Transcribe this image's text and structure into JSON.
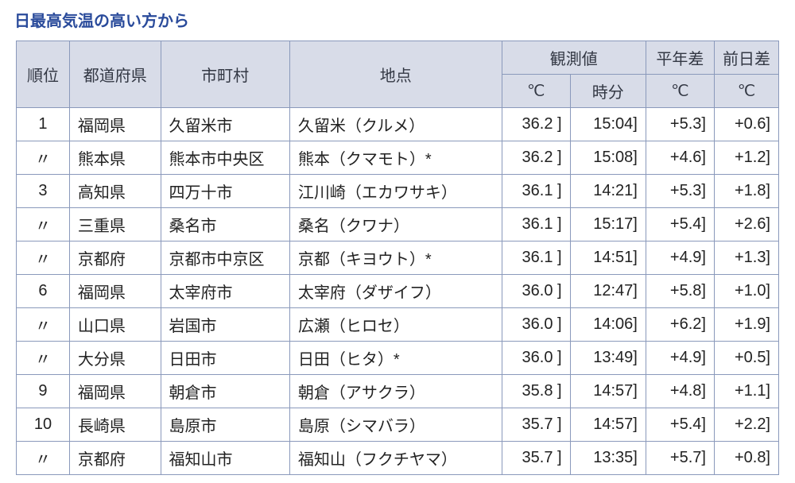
{
  "title": {
    "text": "日最高気温の高い方から",
    "color": "#2a4b9b",
    "fontsize": 20
  },
  "table": {
    "border_color": "#8a99bb",
    "header_bg": "#d8dce8",
    "header_text_color": "#333844",
    "body_text_color": "#222222",
    "row_bg": "#ffffff",
    "headers": {
      "rank": "順位",
      "pref": "都道府県",
      "city": "市町村",
      "station": "地点",
      "obs_group": "観測値",
      "obs_temp": "℃",
      "obs_time": "時分",
      "diff_normal": "平年差",
      "diff_normal_unit": "℃",
      "diff_prev": "前日差",
      "diff_prev_unit": "℃"
    },
    "rows": [
      {
        "rank": "1",
        "pref": "福岡県",
        "city": "久留米市",
        "station": "久留米（クルメ）",
        "temp": "36.2 ]",
        "time": "15:04]",
        "diff1": "+5.3]",
        "diff2": "+0.6]"
      },
      {
        "rank": "〃",
        "pref": "熊本県",
        "city": "熊本市中央区",
        "station": "熊本（クマモト）*",
        "temp": "36.2 ]",
        "time": "15:08]",
        "diff1": "+4.6]",
        "diff2": "+1.2]"
      },
      {
        "rank": "3",
        "pref": "高知県",
        "city": "四万十市",
        "station": "江川崎（エカワサキ）",
        "temp": "36.1 ]",
        "time": "14:21]",
        "diff1": "+5.3]",
        "diff2": "+1.8]"
      },
      {
        "rank": "〃",
        "pref": "三重県",
        "city": "桑名市",
        "station": "桑名（クワナ）",
        "temp": "36.1 ]",
        "time": "15:17]",
        "diff1": "+5.4]",
        "diff2": "+2.6]"
      },
      {
        "rank": "〃",
        "pref": "京都府",
        "city": "京都市中京区",
        "station": "京都（キヨウト）*",
        "temp": "36.1 ]",
        "time": "14:51]",
        "diff1": "+4.9]",
        "diff2": "+1.3]"
      },
      {
        "rank": "6",
        "pref": "福岡県",
        "city": "太宰府市",
        "station": "太宰府（ダザイフ）",
        "temp": "36.0 ]",
        "time": "12:47]",
        "diff1": "+5.8]",
        "diff2": "+1.0]"
      },
      {
        "rank": "〃",
        "pref": "山口県",
        "city": "岩国市",
        "station": "広瀬（ヒロセ）",
        "temp": "36.0 ]",
        "time": "14:06]",
        "diff1": "+6.2]",
        "diff2": "+1.9]"
      },
      {
        "rank": "〃",
        "pref": "大分県",
        "city": "日田市",
        "station": "日田（ヒタ）*",
        "temp": "36.0 ]",
        "time": "13:49]",
        "diff1": "+4.9]",
        "diff2": "+0.5]"
      },
      {
        "rank": "9",
        "pref": "福岡県",
        "city": "朝倉市",
        "station": "朝倉（アサクラ）",
        "temp": "35.8 ]",
        "time": "14:57]",
        "diff1": "+4.8]",
        "diff2": "+1.1]"
      },
      {
        "rank": "10",
        "pref": "長崎県",
        "city": "島原市",
        "station": "島原（シマバラ）",
        "temp": "35.7 ]",
        "time": "14:57]",
        "diff1": "+5.4]",
        "diff2": "+2.2]"
      },
      {
        "rank": "〃",
        "pref": "京都府",
        "city": "福知山市",
        "station": "福知山（フクチヤマ）",
        "temp": "35.7 ]",
        "time": "13:35]",
        "diff1": "+5.7]",
        "diff2": "+0.8]"
      }
    ]
  }
}
